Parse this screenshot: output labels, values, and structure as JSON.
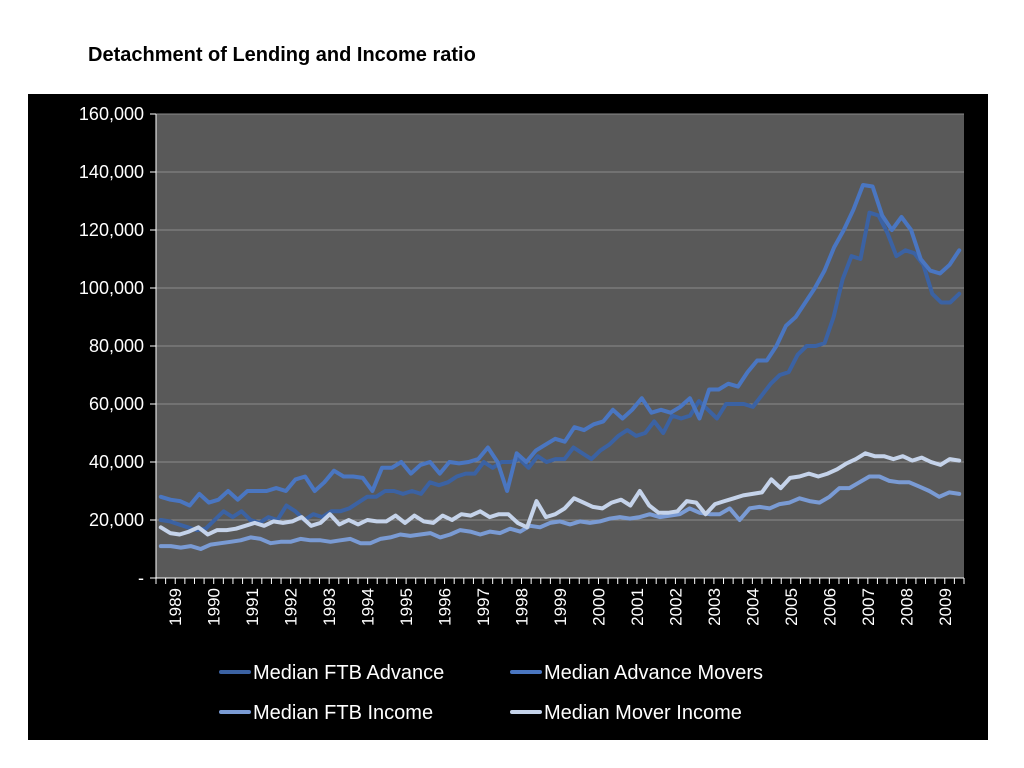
{
  "slide": {
    "title": "Detachment of Lending and Income ratio"
  },
  "chart_data": {
    "type": "line",
    "title": "Detachment of Lending and Income ratio",
    "xlabel": "",
    "ylabel": "",
    "ylim": [
      0,
      160000
    ],
    "yticks": [
      0,
      20000,
      40000,
      60000,
      80000,
      100000,
      120000,
      140000,
      160000
    ],
    "ytick_labels": [
      "-",
      "20,000",
      "40,000",
      "60,000",
      "80,000",
      "100,000",
      "120,000",
      "140,000",
      "160,000"
    ],
    "xtick_labels": [
      "1989",
      "1990",
      "1991",
      "1992",
      "1993",
      "1994",
      "1995",
      "1996",
      "1997",
      "1998",
      "1999",
      "2000",
      "2001",
      "2002",
      "2003",
      "2004",
      "2005",
      "2006",
      "2007",
      "2008",
      "2009"
    ],
    "x_start": "1989 Q1",
    "x_end": "2009 Q4",
    "grid": true,
    "legend_position": "bottom",
    "plot_background": "#595959",
    "panel_background": "#000000",
    "series": [
      {
        "name": "Median FTB Advance",
        "color": "#3b62a3",
        "values": [
          20000,
          19500,
          18500,
          17500,
          16500,
          17000,
          20000,
          23000,
          21000,
          23000,
          20000,
          19000,
          21000,
          20000,
          25000,
          23000,
          20000,
          22000,
          21000,
          23000,
          23000,
          24000,
          26000,
          28000,
          28000,
          30000,
          30000,
          29000,
          30000,
          29000,
          33000,
          32000,
          33000,
          35000,
          36000,
          36000,
          40000,
          38000,
          40000,
          40000,
          41000,
          38000,
          42000,
          40000,
          41000,
          41000,
          45000,
          43000,
          41000,
          44000,
          46000,
          49000,
          51000,
          49000,
          50000,
          54000,
          50000,
          56000,
          55000,
          56000,
          61000,
          58000,
          55000,
          60000,
          60000,
          60000,
          59000,
          63000,
          67000,
          70000,
          71000,
          77000,
          80000,
          80000,
          81000,
          90000,
          103000,
          111000,
          110000,
          126000,
          125000,
          119000,
          111000,
          113000,
          112000,
          108000,
          98000,
          95000,
          95000,
          98000
        ]
      },
      {
        "name": "Median Advance Movers",
        "color": "#4a76c1",
        "values": [
          28000,
          27000,
          26500,
          25000,
          29000,
          26000,
          27000,
          30000,
          27000,
          30000,
          30000,
          30000,
          31000,
          30000,
          34000,
          35000,
          30000,
          33000,
          37000,
          35000,
          35000,
          34500,
          30000,
          38000,
          38000,
          40000,
          36000,
          39000,
          40000,
          36000,
          40000,
          39500,
          40000,
          41000,
          45000,
          40000,
          30000,
          43000,
          40000,
          44000,
          46000,
          48000,
          47000,
          52000,
          51000,
          53000,
          54000,
          58000,
          55000,
          58000,
          62000,
          57000,
          58000,
          57000,
          59000,
          62000,
          55000,
          65000,
          65000,
          67000,
          66000,
          71000,
          75000,
          75000,
          80000,
          87000,
          90000,
          95000,
          100000,
          106000,
          114000,
          120000,
          127000,
          135500,
          135000,
          125000,
          120000,
          124500,
          120000,
          110000,
          106000,
          105000,
          108000,
          113000
        ]
      },
      {
        "name": "Median FTB Income",
        "color": "#7a9bd4",
        "values": [
          11000,
          11000,
          10500,
          11000,
          10000,
          11500,
          12000,
          12500,
          13000,
          14000,
          13500,
          12000,
          12500,
          12500,
          13500,
          13000,
          13000,
          12500,
          13000,
          13500,
          12000,
          12000,
          13500,
          14000,
          15000,
          14500,
          15000,
          15500,
          14000,
          15000,
          16500,
          16000,
          15000,
          16000,
          15500,
          17000,
          16000,
          18000,
          17500,
          19000,
          19500,
          18500,
          19500,
          19000,
          19500,
          20500,
          21000,
          20500,
          21000,
          22000,
          21000,
          21500,
          22000,
          24000,
          22500,
          22000,
          22000,
          24000,
          20000,
          24000,
          24500,
          24000,
          25500,
          26000,
          27500,
          26500,
          26000,
          28000,
          31000,
          31000,
          33000,
          35000,
          35000,
          33500,
          33000,
          33000,
          31500,
          30000,
          28000,
          29500,
          29000
        ]
      },
      {
        "name": "Median Mover Income",
        "color": "#c5d3ea",
        "values": [
          17500,
          15500,
          15000,
          16000,
          17500,
          15000,
          16500,
          16500,
          17000,
          18000,
          19000,
          18000,
          19500,
          19000,
          19500,
          21000,
          18000,
          19000,
          22000,
          18500,
          20000,
          18500,
          20000,
          19500,
          19500,
          21500,
          19000,
          21500,
          19500,
          19000,
          21500,
          20000,
          22000,
          21500,
          23000,
          21000,
          22000,
          22000,
          19000,
          17500,
          26500,
          21000,
          22000,
          24000,
          27500,
          26000,
          24500,
          24000,
          26000,
          27000,
          25000,
          30000,
          25000,
          22500,
          22500,
          23000,
          26500,
          26000,
          22000,
          25500,
          26500,
          27500,
          28500,
          29000,
          29500,
          34000,
          31000,
          34500,
          35000,
          36000,
          35000,
          36000,
          37500,
          39500,
          41000,
          43000,
          42000,
          42000,
          41000,
          42000,
          40500,
          41500,
          40000,
          39000,
          41000,
          40500
        ]
      }
    ]
  }
}
